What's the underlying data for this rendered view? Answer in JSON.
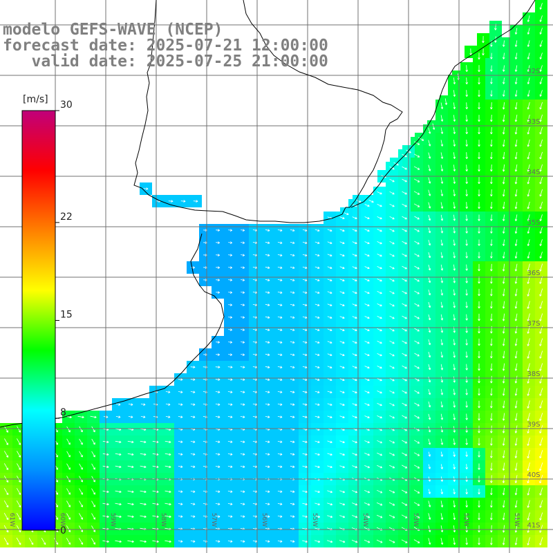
{
  "title": {
    "model": "modelo GEFS-WAVE (NCEP)",
    "forecast_date": "forecast date: 2025-07-21 12:00:00",
    "valid_date": "   valid date: 2025-07-25 21:00:00"
  },
  "colorbar": {
    "unit": "[m/s]",
    "min": 0,
    "max": 30,
    "ticks": [
      {
        "value": 30,
        "label": "30"
      },
      {
        "value": 22,
        "label": "22"
      },
      {
        "value": 15,
        "label": "15"
      },
      {
        "value": 8,
        "label": "8"
      },
      {
        "value": 0,
        "label": "0"
      }
    ],
    "colors": [
      "#0000ff",
      "#0090ff",
      "#00ffff",
      "#00ff00",
      "#ffff00",
      "#ff8000",
      "#ff0000",
      "#c0007a"
    ]
  },
  "map": {
    "variable": "wind speed",
    "lon_range": [
      -61,
      -50
    ],
    "lat_range": [
      -41.4,
      -30.8
    ],
    "lat_labels": [
      "32S",
      "33S",
      "34S",
      "35S",
      "36S",
      "37S",
      "38S",
      "39S",
      "40S",
      "41S"
    ],
    "lon_labels": [
      "61W",
      "60W",
      "59W",
      "58W",
      "57W",
      "56W",
      "55W",
      "54W",
      "53W",
      "52W",
      "51W"
    ],
    "land_color": "#ffffff",
    "arrow_color": "#ffffff",
    "grid": true
  }
}
